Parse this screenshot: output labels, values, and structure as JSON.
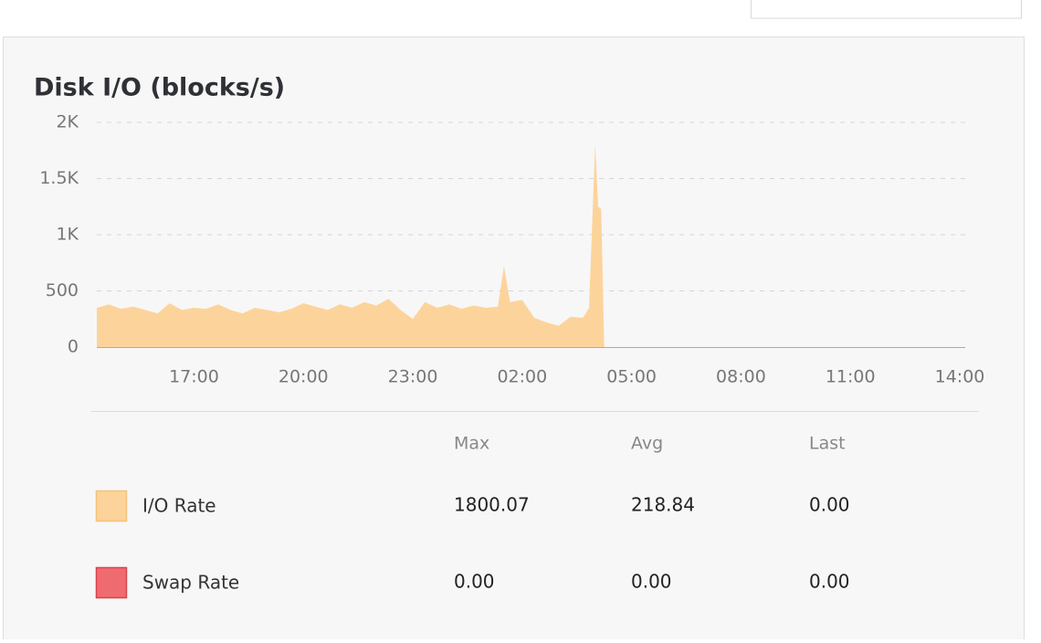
{
  "chart_data": {
    "type": "area",
    "title": "Disk I/O (blocks/s)",
    "x": [
      "14:20",
      "14:40",
      "15:00",
      "15:20",
      "15:40",
      "16:00",
      "16:20",
      "16:40",
      "17:00",
      "17:20",
      "17:40",
      "18:00",
      "18:20",
      "18:40",
      "19:00",
      "19:20",
      "19:40",
      "20:00",
      "20:20",
      "20:40",
      "21:00",
      "21:20",
      "21:40",
      "22:00",
      "22:20",
      "22:40",
      "23:00",
      "23:20",
      "23:40",
      "00:00",
      "00:20",
      "00:40",
      "01:00",
      "01:20",
      "01:30",
      "01:40",
      "02:00",
      "02:20",
      "02:40",
      "03:00",
      "03:20",
      "03:40",
      "03:50",
      "04:00",
      "04:05",
      "04:10",
      "04:15"
    ],
    "series": [
      {
        "name": "I/O Rate",
        "color": "#fcd49b",
        "border": "#f5c27a",
        "values": [
          350,
          380,
          340,
          360,
          330,
          300,
          390,
          330,
          350,
          340,
          380,
          330,
          300,
          350,
          330,
          310,
          340,
          390,
          360,
          330,
          380,
          350,
          400,
          370,
          430,
          330,
          250,
          400,
          350,
          380,
          340,
          370,
          350,
          360,
          720,
          400,
          420,
          260,
          220,
          190,
          270,
          260,
          350,
          1800,
          1250,
          1230,
          0
        ]
      },
      {
        "name": "Swap Rate",
        "color": "#f06b70",
        "border": "#d6454b",
        "values": [
          0,
          0,
          0,
          0,
          0,
          0,
          0,
          0,
          0,
          0,
          0,
          0,
          0,
          0,
          0,
          0,
          0,
          0,
          0,
          0,
          0,
          0,
          0,
          0,
          0,
          0,
          0,
          0,
          0,
          0,
          0,
          0,
          0,
          0,
          0,
          0,
          0,
          0,
          0,
          0,
          0,
          0,
          0,
          0,
          0,
          0,
          0
        ]
      }
    ],
    "xlim": [
      "14:20",
      "14:09"
    ],
    "xticks": [
      "17:00",
      "20:00",
      "23:00",
      "02:00",
      "05:00",
      "08:00",
      "11:00",
      "14:00"
    ],
    "ylim": [
      0,
      2000
    ],
    "yticks": [
      0,
      500,
      {
        "value": 1000,
        "label": "1K"
      },
      {
        "value": 1500,
        "label": "1.5K"
      },
      {
        "value": 2000,
        "label": "2K"
      }
    ],
    "grid": true
  },
  "stats": {
    "columns": [
      "Max",
      "Avg",
      "Last"
    ],
    "rows": [
      [
        "1800.07",
        "218.84",
        "0.00"
      ],
      [
        "0.00",
        "0.00",
        "0.00"
      ]
    ]
  }
}
